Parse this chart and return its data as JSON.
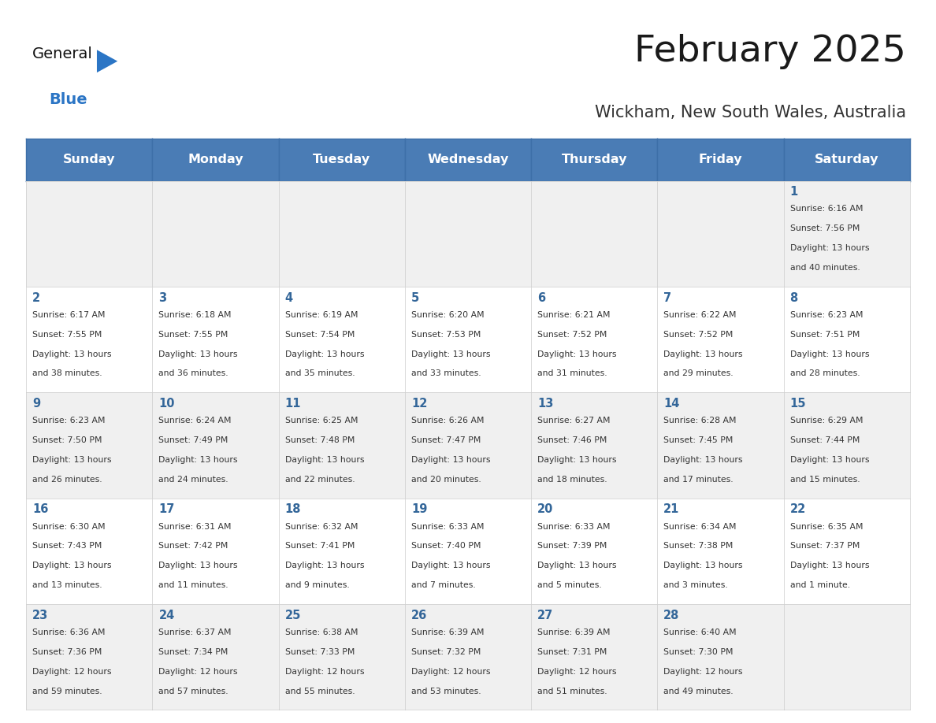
{
  "title": "February 2025",
  "subtitle": "Wickham, New South Wales, Australia",
  "header_bg": "#4A7CB5",
  "header_text_color": "#FFFFFF",
  "day_names": [
    "Sunday",
    "Monday",
    "Tuesday",
    "Wednesday",
    "Thursday",
    "Friday",
    "Saturday"
  ],
  "cell_bg_odd": "#F0F0F0",
  "cell_bg_even": "#FFFFFF",
  "cell_border_color": "#CCCCCC",
  "day_number_color": "#336699",
  "day_text_color": "#333333",
  "title_color": "#1a1a1a",
  "subtitle_color": "#333333",
  "logo_general_color": "#111111",
  "logo_blue_color": "#2B75C5",
  "logo_triangle_color": "#2B75C5",
  "calendar": [
    [
      null,
      null,
      null,
      null,
      null,
      null,
      {
        "day": 1,
        "sunrise": "6:16 AM",
        "sunset": "7:56 PM",
        "daylight_line1": "13 hours",
        "daylight_line2": "and 40 minutes."
      }
    ],
    [
      {
        "day": 2,
        "sunrise": "6:17 AM",
        "sunset": "7:55 PM",
        "daylight_line1": "13 hours",
        "daylight_line2": "and 38 minutes."
      },
      {
        "day": 3,
        "sunrise": "6:18 AM",
        "sunset": "7:55 PM",
        "daylight_line1": "13 hours",
        "daylight_line2": "and 36 minutes."
      },
      {
        "day": 4,
        "sunrise": "6:19 AM",
        "sunset": "7:54 PM",
        "daylight_line1": "13 hours",
        "daylight_line2": "and 35 minutes."
      },
      {
        "day": 5,
        "sunrise": "6:20 AM",
        "sunset": "7:53 PM",
        "daylight_line1": "13 hours",
        "daylight_line2": "and 33 minutes."
      },
      {
        "day": 6,
        "sunrise": "6:21 AM",
        "sunset": "7:52 PM",
        "daylight_line1": "13 hours",
        "daylight_line2": "and 31 minutes."
      },
      {
        "day": 7,
        "sunrise": "6:22 AM",
        "sunset": "7:52 PM",
        "daylight_line1": "13 hours",
        "daylight_line2": "and 29 minutes."
      },
      {
        "day": 8,
        "sunrise": "6:23 AM",
        "sunset": "7:51 PM",
        "daylight_line1": "13 hours",
        "daylight_line2": "and 28 minutes."
      }
    ],
    [
      {
        "day": 9,
        "sunrise": "6:23 AM",
        "sunset": "7:50 PM",
        "daylight_line1": "13 hours",
        "daylight_line2": "and 26 minutes."
      },
      {
        "day": 10,
        "sunrise": "6:24 AM",
        "sunset": "7:49 PM",
        "daylight_line1": "13 hours",
        "daylight_line2": "and 24 minutes."
      },
      {
        "day": 11,
        "sunrise": "6:25 AM",
        "sunset": "7:48 PM",
        "daylight_line1": "13 hours",
        "daylight_line2": "and 22 minutes."
      },
      {
        "day": 12,
        "sunrise": "6:26 AM",
        "sunset": "7:47 PM",
        "daylight_line1": "13 hours",
        "daylight_line2": "and 20 minutes."
      },
      {
        "day": 13,
        "sunrise": "6:27 AM",
        "sunset": "7:46 PM",
        "daylight_line1": "13 hours",
        "daylight_line2": "and 18 minutes."
      },
      {
        "day": 14,
        "sunrise": "6:28 AM",
        "sunset": "7:45 PM",
        "daylight_line1": "13 hours",
        "daylight_line2": "and 17 minutes."
      },
      {
        "day": 15,
        "sunrise": "6:29 AM",
        "sunset": "7:44 PM",
        "daylight_line1": "13 hours",
        "daylight_line2": "and 15 minutes."
      }
    ],
    [
      {
        "day": 16,
        "sunrise": "6:30 AM",
        "sunset": "7:43 PM",
        "daylight_line1": "13 hours",
        "daylight_line2": "and 13 minutes."
      },
      {
        "day": 17,
        "sunrise": "6:31 AM",
        "sunset": "7:42 PM",
        "daylight_line1": "13 hours",
        "daylight_line2": "and 11 minutes."
      },
      {
        "day": 18,
        "sunrise": "6:32 AM",
        "sunset": "7:41 PM",
        "daylight_line1": "13 hours",
        "daylight_line2": "and 9 minutes."
      },
      {
        "day": 19,
        "sunrise": "6:33 AM",
        "sunset": "7:40 PM",
        "daylight_line1": "13 hours",
        "daylight_line2": "and 7 minutes."
      },
      {
        "day": 20,
        "sunrise": "6:33 AM",
        "sunset": "7:39 PM",
        "daylight_line1": "13 hours",
        "daylight_line2": "and 5 minutes."
      },
      {
        "day": 21,
        "sunrise": "6:34 AM",
        "sunset": "7:38 PM",
        "daylight_line1": "13 hours",
        "daylight_line2": "and 3 minutes."
      },
      {
        "day": 22,
        "sunrise": "6:35 AM",
        "sunset": "7:37 PM",
        "daylight_line1": "13 hours",
        "daylight_line2": "and 1 minute."
      }
    ],
    [
      {
        "day": 23,
        "sunrise": "6:36 AM",
        "sunset": "7:36 PM",
        "daylight_line1": "12 hours",
        "daylight_line2": "and 59 minutes."
      },
      {
        "day": 24,
        "sunrise": "6:37 AM",
        "sunset": "7:34 PM",
        "daylight_line1": "12 hours",
        "daylight_line2": "and 57 minutes."
      },
      {
        "day": 25,
        "sunrise": "6:38 AM",
        "sunset": "7:33 PM",
        "daylight_line1": "12 hours",
        "daylight_line2": "and 55 minutes."
      },
      {
        "day": 26,
        "sunrise": "6:39 AM",
        "sunset": "7:32 PM",
        "daylight_line1": "12 hours",
        "daylight_line2": "and 53 minutes."
      },
      {
        "day": 27,
        "sunrise": "6:39 AM",
        "sunset": "7:31 PM",
        "daylight_line1": "12 hours",
        "daylight_line2": "and 51 minutes."
      },
      {
        "day": 28,
        "sunrise": "6:40 AM",
        "sunset": "7:30 PM",
        "daylight_line1": "12 hours",
        "daylight_line2": "and 49 minutes."
      },
      null
    ]
  ]
}
